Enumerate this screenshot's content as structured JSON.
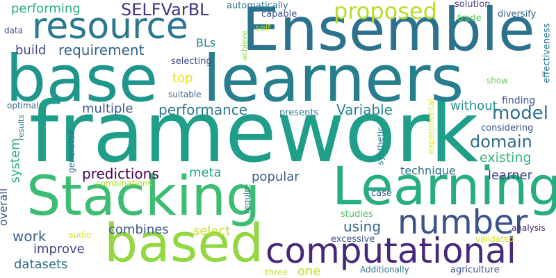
{
  "words": [
    {
      "text": "framework",
      "color": "#1f9e89"
    },
    {
      "text": "base",
      "color": "#1f968b"
    },
    {
      "text": "learners",
      "color": "#277f8e"
    },
    {
      "text": "Stacking",
      "color": "#3dbc74"
    },
    {
      "text": "Ensemble",
      "color": "#2c728e"
    },
    {
      "text": "based",
      "color": "#93d741"
    },
    {
      "text": "Learning",
      "color": "#26ad81"
    },
    {
      "text": "computational",
      "color": "#482878"
    },
    {
      "text": "number",
      "color": "#3b528b"
    },
    {
      "text": "resource",
      "color": "#2a788e"
    },
    {
      "text": "proposed",
      "color": "#b5de2b"
    },
    {
      "text": "SELFVarBL",
      "color": "#46327e"
    },
    {
      "text": "requirement",
      "color": "#33638d"
    },
    {
      "text": "performance",
      "color": "#2a788e"
    },
    {
      "text": "Variable",
      "color": "#25838e"
    },
    {
      "text": "model",
      "color": "#2c728e"
    },
    {
      "text": "domain",
      "color": "#2e6e8e"
    },
    {
      "text": "existing",
      "color": "#35b779"
    },
    {
      "text": "without",
      "color": "#21918c"
    },
    {
      "text": "multiple",
      "color": "#39568c"
    },
    {
      "text": "predictions",
      "color": "#440154"
    },
    {
      "text": "meta",
      "color": "#20a386"
    },
    {
      "text": "popular",
      "color": "#38598c"
    },
    {
      "text": "technique",
      "color": "#2d708e"
    },
    {
      "text": "learner",
      "color": "#3f4788"
    },
    {
      "text": "using",
      "color": "#31688e"
    },
    {
      "text": "combines",
      "color": "#3b528b"
    },
    {
      "text": "select",
      "color": "#c8e020"
    },
    {
      "text": "work",
      "color": "#355f8d"
    },
    {
      "text": "improve",
      "color": "#414487"
    },
    {
      "text": "datasets",
      "color": "#2c728e"
    },
    {
      "text": "one",
      "color": "#c2df23"
    },
    {
      "text": "system",
      "color": "#26ad81"
    },
    {
      "text": "overall",
      "color": "#3b528b"
    },
    {
      "text": "performing",
      "color": "#29af7f"
    },
    {
      "text": "build",
      "color": "#3e4989"
    },
    {
      "text": "top",
      "color": "#e5e419"
    },
    {
      "text": "BLs",
      "color": "#27808e"
    },
    {
      "text": "selecting",
      "color": "#3e4a89"
    },
    {
      "text": "automatically",
      "color": "#2d708e"
    },
    {
      "text": "capable",
      "color": "#3b528b"
    },
    {
      "text": "solution",
      "color": "#433e85"
    },
    {
      "text": "trade",
      "color": "#5ec962"
    },
    {
      "text": "diversify",
      "color": "#33638d"
    },
    {
      "text": "finding",
      "color": "#3b528b"
    },
    {
      "text": "considering",
      "color": "#3b528b"
    },
    {
      "text": "effectiveness",
      "color": "#2a788e"
    },
    {
      "text": "show",
      "color": "#6ccd5a"
    },
    {
      "text": "achieve",
      "color": "#90d743"
    },
    {
      "text": "self",
      "color": "#bddf26"
    },
    {
      "text": "suitable",
      "color": "#31688e"
    },
    {
      "text": "presents",
      "color": "#2a788e"
    },
    {
      "text": "optimal",
      "color": "#31688e"
    },
    {
      "text": "results",
      "color": "#2c728e"
    },
    {
      "text": "data",
      "color": "#3b528b"
    },
    {
      "text": "generated",
      "color": "#31688e"
    },
    {
      "text": "combinations",
      "color": "#aadc32"
    },
    {
      "text": "audio",
      "color": "#d8e219"
    },
    {
      "text": "require",
      "color": "#2a788e"
    },
    {
      "text": "synthetic",
      "color": "#26828e"
    },
    {
      "text": "experimental",
      "color": "#e5e419"
    },
    {
      "text": "case",
      "color": "#38598c"
    },
    {
      "text": "studies",
      "color": "#52c569"
    },
    {
      "text": "excessive",
      "color": "#3b528b"
    },
    {
      "text": "validated",
      "color": "#d8e219"
    },
    {
      "text": "analysis",
      "color": "#482576"
    },
    {
      "text": "agriculture",
      "color": "#3b528b"
    },
    {
      "text": "Additionally",
      "color": "#2a788e"
    },
    {
      "text": "three",
      "color": "#c2df23"
    }
  ]
}
